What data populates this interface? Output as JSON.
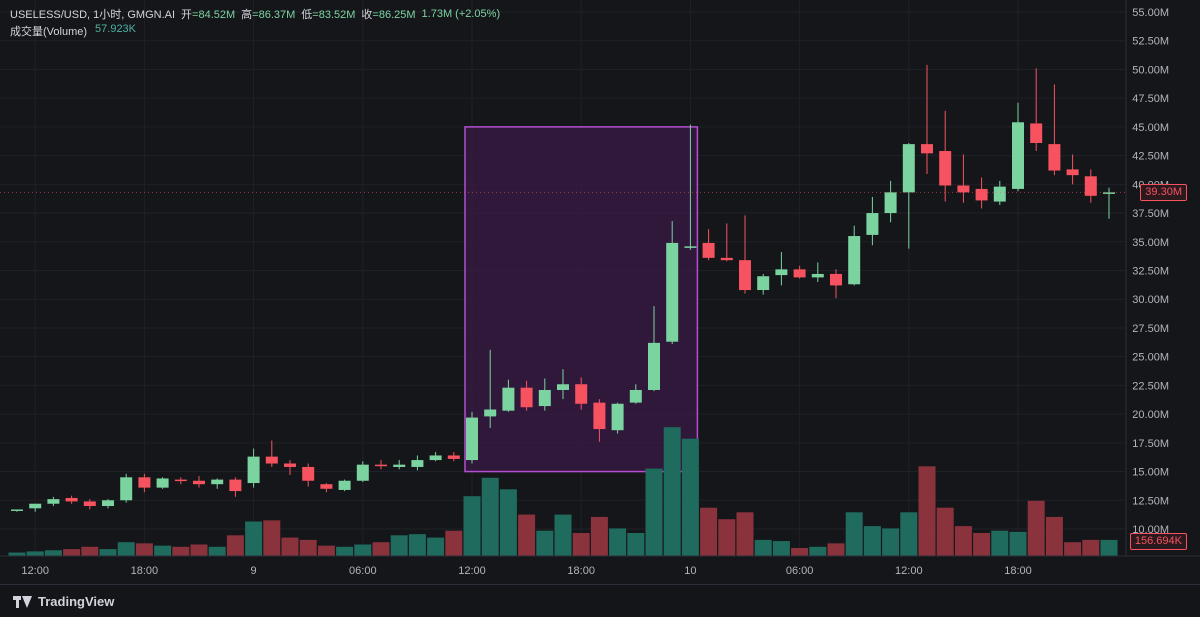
{
  "header": {
    "symbol": "USELESS/USD, 1小时, GMGN.AI",
    "open_label": "开",
    "open_value": "=84.52M",
    "high_label": "高",
    "high_value": "=86.37M",
    "low_label": "低",
    "low_value": "=83.52M",
    "close_label": "收",
    "close_value": "=86.25M",
    "change_value": "1.73M (+2.05%)",
    "volume_label": "成交量(Volume)",
    "volume_value": "57.923K"
  },
  "price_tag": {
    "text": "39.30M",
    "color": "#f7525f"
  },
  "volume_tag": {
    "text": "156.694K",
    "color": "#f7525f"
  },
  "footer": {
    "brand": "TradingView"
  },
  "colors": {
    "up": "#7bd3a0",
    "down": "#f7525f",
    "vol_up": "#1f6b5e",
    "vol_down": "#8a333d",
    "highlight_fill": "#3a1a45",
    "highlight_stroke": "#b44fd1"
  },
  "chart_data": {
    "type": "candlestick",
    "title": "",
    "ylim": [
      10.0,
      55.0
    ],
    "y_ticks": [
      "10.00M",
      "12.50M",
      "15.00M",
      "17.50M",
      "20.00M",
      "22.50M",
      "25.00M",
      "27.50M",
      "30.00M",
      "32.50M",
      "35.00M",
      "37.50M",
      "40.00M",
      "42.50M",
      "45.00M",
      "47.50M",
      "50.00M",
      "52.50M",
      "55.00M"
    ],
    "x_ticks": [
      {
        "label": "12:00",
        "index": 1
      },
      {
        "label": "18:00",
        "index": 7
      },
      {
        "label": "9",
        "index": 13
      },
      {
        "label": "06:00",
        "index": 19
      },
      {
        "label": "12:00",
        "index": 25
      },
      {
        "label": "18:00",
        "index": 31
      },
      {
        "label": "10",
        "index": 37
      },
      {
        "label": "06:00",
        "index": 43
      },
      {
        "label": "12:00",
        "index": 49
      },
      {
        "label": "18:00",
        "index": 55
      }
    ],
    "candles": [
      {
        "o": 11.6,
        "h": 11.7,
        "l": 11.5,
        "c": 11.7,
        "v": 1.5
      },
      {
        "o": 11.8,
        "h": 12.2,
        "l": 11.5,
        "c": 12.2,
        "v": 2.0
      },
      {
        "o": 12.2,
        "h": 12.8,
        "l": 12.0,
        "c": 12.6,
        "v": 2.5
      },
      {
        "o": 12.7,
        "h": 12.9,
        "l": 12.2,
        "c": 12.4,
        "v": 3.0
      },
      {
        "o": 12.4,
        "h": 12.6,
        "l": 11.7,
        "c": 12.0,
        "v": 4.0
      },
      {
        "o": 12.0,
        "h": 12.6,
        "l": 11.8,
        "c": 12.5,
        "v": 3.0
      },
      {
        "o": 12.5,
        "h": 14.8,
        "l": 12.3,
        "c": 14.5,
        "v": 6.0
      },
      {
        "o": 14.5,
        "h": 14.8,
        "l": 13.2,
        "c": 13.6,
        "v": 5.5
      },
      {
        "o": 13.6,
        "h": 14.5,
        "l": 13.5,
        "c": 14.4,
        "v": 4.5
      },
      {
        "o": 14.3,
        "h": 14.5,
        "l": 13.9,
        "c": 14.2,
        "v": 4.0
      },
      {
        "o": 14.2,
        "h": 14.6,
        "l": 13.6,
        "c": 13.9,
        "v": 5.0
      },
      {
        "o": 13.9,
        "h": 14.4,
        "l": 13.5,
        "c": 14.3,
        "v": 4.0
      },
      {
        "o": 14.3,
        "h": 14.5,
        "l": 12.8,
        "c": 13.3,
        "v": 9.0
      },
      {
        "o": 14.0,
        "h": 17.0,
        "l": 13.6,
        "c": 16.3,
        "v": 15.0
      },
      {
        "o": 16.3,
        "h": 17.7,
        "l": 15.4,
        "c": 15.7,
        "v": 15.5
      },
      {
        "o": 15.7,
        "h": 16.0,
        "l": 14.7,
        "c": 15.4,
        "v": 8.0
      },
      {
        "o": 15.4,
        "h": 15.7,
        "l": 13.7,
        "c": 14.2,
        "v": 7.0
      },
      {
        "o": 13.9,
        "h": 14.0,
        "l": 13.2,
        "c": 13.5,
        "v": 4.5
      },
      {
        "o": 13.4,
        "h": 14.3,
        "l": 13.3,
        "c": 14.2,
        "v": 4.0
      },
      {
        "o": 14.2,
        "h": 15.9,
        "l": 14.1,
        "c": 15.6,
        "v": 5.0
      },
      {
        "o": 15.6,
        "h": 16.0,
        "l": 15.2,
        "c": 15.5,
        "v": 6.0
      },
      {
        "o": 15.4,
        "h": 16.0,
        "l": 15.2,
        "c": 15.6,
        "v": 9.0
      },
      {
        "o": 15.4,
        "h": 16.4,
        "l": 15.1,
        "c": 16.0,
        "v": 9.5
      },
      {
        "o": 16.0,
        "h": 16.7,
        "l": 15.9,
        "c": 16.4,
        "v": 8.0
      },
      {
        "o": 16.4,
        "h": 16.7,
        "l": 15.9,
        "c": 16.1,
        "v": 11.0
      },
      {
        "o": 16.0,
        "h": 20.2,
        "l": 15.7,
        "c": 19.7,
        "v": 26.0
      },
      {
        "o": 19.8,
        "h": 25.6,
        "l": 18.8,
        "c": 20.4,
        "v": 34.0
      },
      {
        "o": 20.3,
        "h": 23.0,
        "l": 20.2,
        "c": 22.3,
        "v": 29.0
      },
      {
        "o": 22.3,
        "h": 22.9,
        "l": 20.3,
        "c": 20.6,
        "v": 18.0
      },
      {
        "o": 20.7,
        "h": 23.1,
        "l": 20.3,
        "c": 22.1,
        "v": 11.0
      },
      {
        "o": 22.1,
        "h": 23.9,
        "l": 21.3,
        "c": 22.6,
        "v": 18.0
      },
      {
        "o": 22.6,
        "h": 23.2,
        "l": 20.4,
        "c": 20.9,
        "v": 10.0
      },
      {
        "o": 21.0,
        "h": 21.3,
        "l": 17.6,
        "c": 18.7,
        "v": 17.0
      },
      {
        "o": 18.6,
        "h": 21.0,
        "l": 18.3,
        "c": 20.9,
        "v": 12.0
      },
      {
        "o": 21.0,
        "h": 22.6,
        "l": 20.9,
        "c": 22.1,
        "v": 10.0
      },
      {
        "o": 22.1,
        "h": 29.4,
        "l": 22.0,
        "c": 26.2,
        "v": 38.0
      },
      {
        "o": 26.3,
        "h": 36.8,
        "l": 26.1,
        "c": 34.9,
        "v": 56.0
      },
      {
        "o": 34.6,
        "h": 45.2,
        "l": 34.3,
        "c": 34.6,
        "v": 51.0
      },
      {
        "o": 34.9,
        "h": 36.1,
        "l": 33.4,
        "c": 33.6,
        "v": 21.0
      },
      {
        "o": 33.6,
        "h": 36.6,
        "l": 33.3,
        "c": 33.4,
        "v": 16.0
      },
      {
        "o": 33.4,
        "h": 37.3,
        "l": 30.5,
        "c": 30.8,
        "v": 19.0
      },
      {
        "o": 30.8,
        "h": 32.2,
        "l": 30.4,
        "c": 32.0,
        "v": 7.0
      },
      {
        "o": 32.1,
        "h": 34.1,
        "l": 31.2,
        "c": 32.6,
        "v": 6.5
      },
      {
        "o": 32.6,
        "h": 32.9,
        "l": 31.8,
        "c": 31.9,
        "v": 3.5
      },
      {
        "o": 31.9,
        "h": 33.2,
        "l": 31.5,
        "c": 32.2,
        "v": 4.0
      },
      {
        "o": 32.2,
        "h": 32.6,
        "l": 30.1,
        "c": 31.2,
        "v": 5.5
      },
      {
        "o": 31.3,
        "h": 36.4,
        "l": 31.2,
        "c": 35.5,
        "v": 19.0
      },
      {
        "o": 35.6,
        "h": 38.9,
        "l": 34.7,
        "c": 37.5,
        "v": 13.0
      },
      {
        "o": 37.5,
        "h": 40.3,
        "l": 36.7,
        "c": 39.3,
        "v": 12.0
      },
      {
        "o": 39.3,
        "h": 43.6,
        "l": 34.4,
        "c": 43.5,
        "v": 19.0
      },
      {
        "o": 43.5,
        "h": 50.4,
        "l": 40.9,
        "c": 42.7,
        "v": 39.0
      },
      {
        "o": 42.9,
        "h": 46.4,
        "l": 38.5,
        "c": 39.9,
        "v": 21.0
      },
      {
        "o": 39.9,
        "h": 42.6,
        "l": 38.4,
        "c": 39.3,
        "v": 13.0
      },
      {
        "o": 39.6,
        "h": 40.6,
        "l": 37.9,
        "c": 38.6,
        "v": 10.0
      },
      {
        "o": 38.5,
        "h": 40.3,
        "l": 38.2,
        "c": 39.8,
        "v": 11.0
      },
      {
        "o": 39.6,
        "h": 47.1,
        "l": 39.4,
        "c": 45.4,
        "v": 10.5
      },
      {
        "o": 45.3,
        "h": 50.1,
        "l": 42.9,
        "c": 43.6,
        "v": 24.0
      },
      {
        "o": 43.5,
        "h": 48.7,
        "l": 40.8,
        "c": 41.2,
        "v": 17.0
      },
      {
        "o": 41.3,
        "h": 42.6,
        "l": 40.0,
        "c": 40.8,
        "v": 6.0
      },
      {
        "o": 40.7,
        "h": 41.3,
        "l": 38.4,
        "c": 39.0,
        "v": 7.0
      },
      {
        "o": 39.3,
        "h": 39.7,
        "l": 37.0,
        "c": 39.3,
        "v": 7.0
      }
    ],
    "highlight": {
      "start_index": 25,
      "end_index": 37,
      "top": 45.0,
      "bottom": 15.0
    }
  }
}
